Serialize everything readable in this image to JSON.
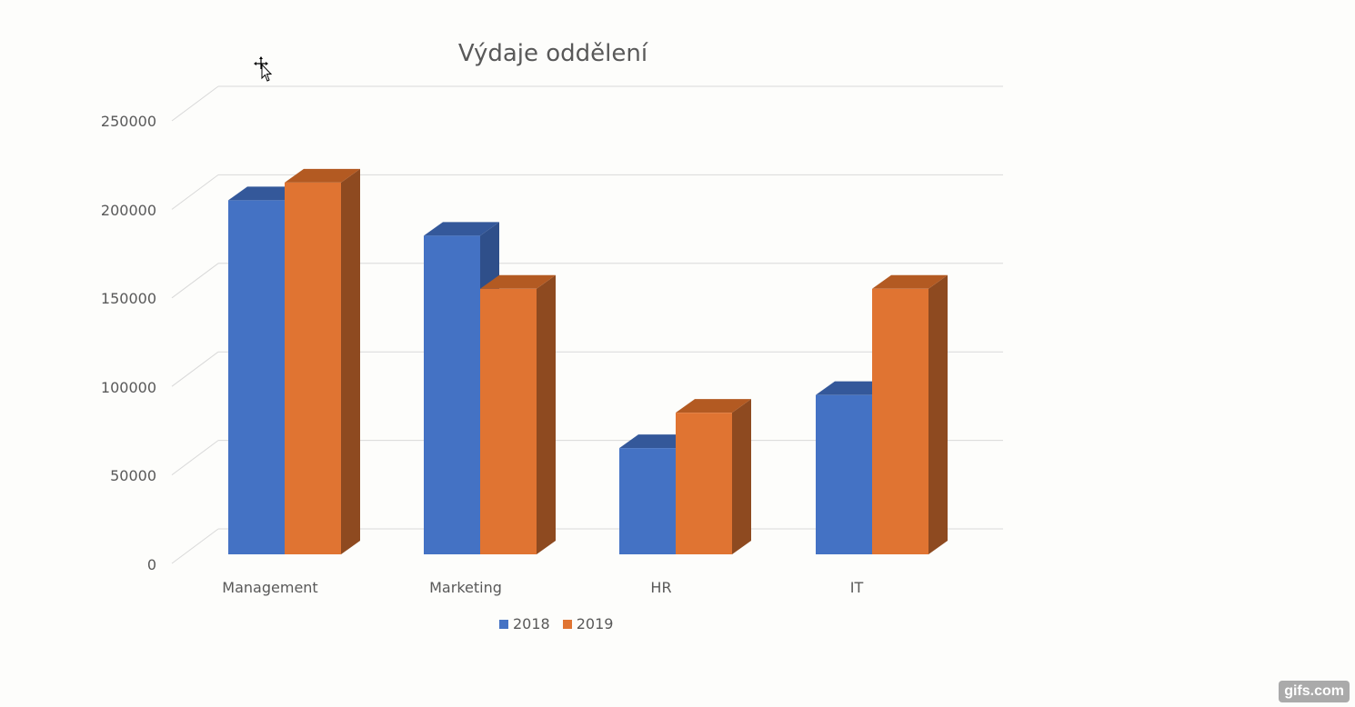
{
  "chart_data": {
    "type": "bar",
    "style": "3d-clustered-column",
    "title": "Výdaje oddělení",
    "categories": [
      "Management",
      "Marketing",
      "HR",
      "IT"
    ],
    "series": [
      {
        "name": "2018",
        "values": [
          200000,
          180000,
          60000,
          90000
        ],
        "color": "#4472c4",
        "side_color": "#2f4f8a",
        "top_color": "#34589a"
      },
      {
        "name": "2019",
        "values": [
          210000,
          150000,
          80000,
          150000
        ],
        "color": "#e07432",
        "side_color": "#8e4a20",
        "top_color": "#b35a22"
      }
    ],
    "xlabel": "",
    "ylabel": "",
    "ylim": [
      0,
      250000
    ],
    "yticks": [
      "0",
      "50000",
      "100000",
      "150000",
      "200000",
      "250000"
    ],
    "grid": true,
    "legend_position": "bottom"
  },
  "chart": {
    "title": "Výdaje oddělení",
    "yticks": [
      "0",
      "50000",
      "100000",
      "150000",
      "200000",
      "250000"
    ],
    "categories": [
      "Management",
      "Marketing",
      "HR",
      "IT"
    ],
    "legend": [
      "2018",
      "2019"
    ]
  },
  "watermark": "gifs.com",
  "colors": {
    "series_2018": "#4472c4",
    "series_2019": "#e07432",
    "gridline": "#d9d9d9",
    "text": "#595959"
  }
}
